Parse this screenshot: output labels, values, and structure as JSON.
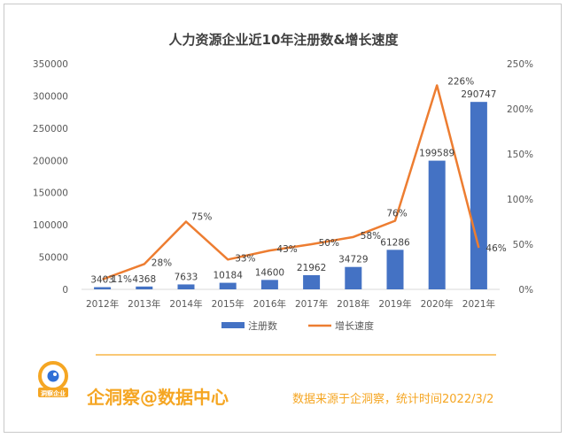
{
  "chart_data": {
    "type": "bar+line",
    "title": "人力资源企业近10年注册数&增长速度",
    "categories": [
      "2012年",
      "2013年",
      "2014年",
      "2015年",
      "2016年",
      "2017年",
      "2018年",
      "2019年",
      "2020年",
      "2021年"
    ],
    "series": [
      {
        "name": "注册数",
        "type": "bar",
        "axis": "left",
        "color": "#4472c4",
        "values": [
          3403,
          4368,
          7633,
          10184,
          14600,
          21962,
          34729,
          61286,
          199589,
          290747
        ],
        "labels": [
          "3403",
          "4368",
          "7633",
          "10184",
          "14600",
          "21962",
          "34729",
          "61286",
          "199589",
          "290747"
        ]
      },
      {
        "name": "增长速度",
        "type": "line",
        "axis": "right",
        "color": "#ed7d31",
        "values": [
          11,
          28,
          75,
          33,
          43,
          50,
          58,
          76,
          226,
          46
        ],
        "labels": [
          "11%",
          "28%",
          "75%",
          "33%",
          "43%",
          "50%",
          "58%",
          "76%",
          "226%",
          "46%"
        ]
      }
    ],
    "yleft": {
      "min": 0,
      "max": 350000,
      "ticks": [
        "0",
        "50000",
        "100000",
        "150000",
        "200000",
        "250000",
        "300000",
        "350000"
      ]
    },
    "yright": {
      "min": 0,
      "max": 250,
      "ticks": [
        "0%",
        "50%",
        "100%",
        "150%",
        "200%",
        "250%"
      ]
    },
    "legend_position": "bottom",
    "grid": false
  },
  "footer": {
    "logo_text": "洞察企业",
    "brand": "企洞察@数据中心",
    "source": "数据来源于企洞察，统计时间2022/3/2",
    "accent_color": "#f5a623"
  }
}
